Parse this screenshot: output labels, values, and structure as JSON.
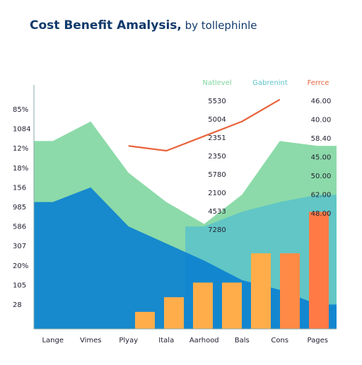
{
  "chart_data": {
    "type": "combo",
    "title": "Cost Benefit Amalysis,",
    "subtitle": " by tollephinle",
    "categories": [
      "Lange",
      "Vimes",
      "Plyay",
      "Itala",
      "Aarhood",
      "Bals",
      "Cons",
      "Pages"
    ],
    "y_labels": [
      "85%",
      "1084",
      "12%",
      "18%",
      "156",
      "985",
      "586",
      "307",
      "20%",
      "105",
      "28"
    ],
    "ylim": [
      0,
      100
    ],
    "series": [
      {
        "name": "Natlevel",
        "kind": "area",
        "color": "#7fd6a0",
        "values": [
          77,
          85,
          64,
          52,
          43,
          55,
          77,
          75
        ]
      },
      {
        "name": "Gabrenint",
        "kind": "area",
        "color": "#5cc3c8",
        "values": [
          null,
          null,
          null,
          null,
          42,
          48,
          52,
          55
        ]
      },
      {
        "name": "",
        "kind": "area",
        "color": "#0a7fd0",
        "values": [
          52,
          58,
          42,
          35,
          28,
          20,
          16,
          10
        ]
      },
      {
        "name": "Ferrce",
        "kind": "line",
        "color": "#e8643c",
        "values": [
          null,
          null,
          75,
          73,
          79,
          85,
          94,
          null
        ]
      }
    ],
    "bars": {
      "values": [
        7,
        13,
        19,
        19,
        31,
        31,
        48
      ],
      "colors": [
        "#ffad4a",
        "#ffad4a",
        "#ffad4a",
        "#ffad4a",
        "#ffad4a",
        "#ff8a45",
        "#ff7a45"
      ]
    },
    "inner_labels": [
      "5530",
      "5004",
      "2351",
      "2350",
      "5780",
      "2100",
      "4533",
      "7280"
    ],
    "right_labels": [
      "46.00",
      "40.00",
      "58.40",
      "45.00",
      "50.00",
      "62.00",
      "48.00"
    ]
  }
}
